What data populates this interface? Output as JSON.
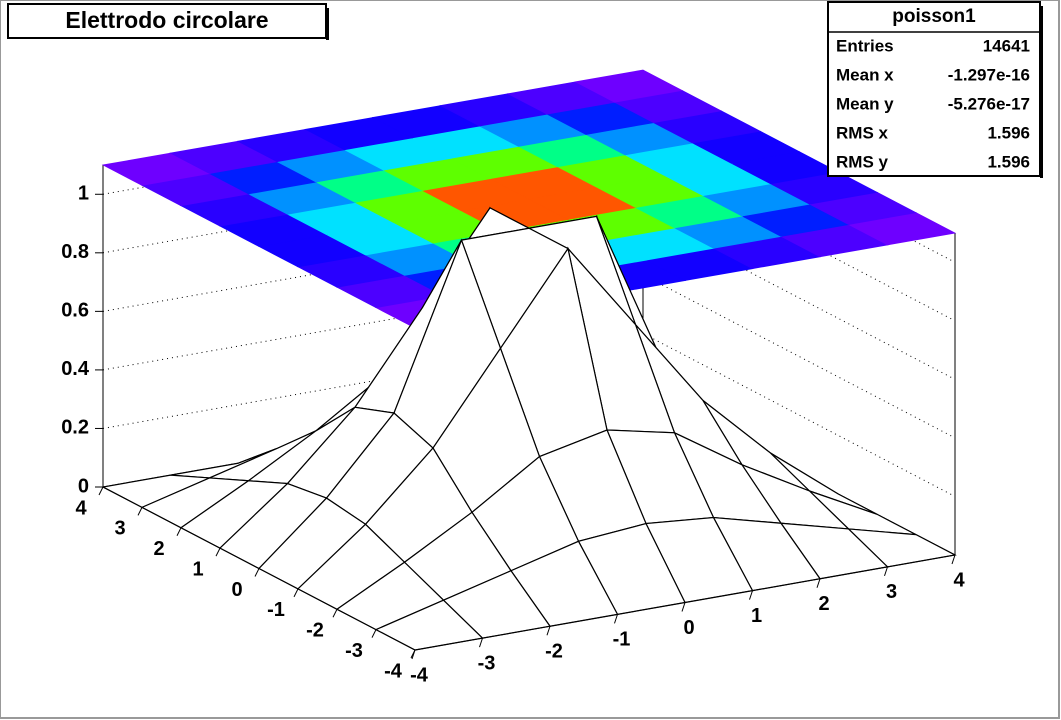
{
  "chart_data": {
    "type": "surface",
    "title": "Elettrodo circolare",
    "stats": {
      "name": "poisson1",
      "rows": [
        {
          "label": "Entries",
          "value": 14641
        },
        {
          "label": "Mean x",
          "value": -1.297e-16
        },
        {
          "label": "Mean y",
          "value": -5.276e-17
        },
        {
          "label": "RMS x",
          "value": 1.596
        },
        {
          "label": "RMS y",
          "value": 1.596
        }
      ]
    },
    "x": [
      -4,
      -3,
      -2,
      -1,
      0,
      1,
      2,
      3,
      4
    ],
    "y": [
      -4,
      -3,
      -2,
      -1,
      0,
      1,
      2,
      3,
      4
    ],
    "z": [
      [
        0,
        0,
        0,
        0,
        0,
        0,
        0,
        0,
        0
      ],
      [
        0,
        0.06,
        0.12,
        0.18,
        0.2,
        0.18,
        0.12,
        0.06,
        0
      ],
      [
        0,
        0.12,
        0.25,
        0.4,
        0.45,
        0.4,
        0.25,
        0.12,
        0
      ],
      [
        0,
        0.18,
        0.4,
        0.7,
        1,
        0.7,
        0.4,
        0.18,
        0
      ],
      [
        0,
        0.2,
        0.45,
        1,
        1,
        1,
        0.45,
        0.2,
        0
      ],
      [
        0,
        0.18,
        0.4,
        0.7,
        1,
        0.7,
        0.4,
        0.18,
        0
      ],
      [
        0,
        0.12,
        0.25,
        0.4,
        0.45,
        0.4,
        0.25,
        0.12,
        0
      ],
      [
        0,
        0.06,
        0.12,
        0.18,
        0.2,
        0.18,
        0.12,
        0.06,
        0
      ],
      [
        0,
        0,
        0,
        0,
        0,
        0,
        0,
        0,
        0
      ]
    ],
    "xlim": [
      -4,
      4
    ],
    "ylim": [
      -4,
      4
    ],
    "zlim": [
      0,
      1.1
    ],
    "xticks": [
      -4,
      -3,
      -2,
      -1,
      0,
      1,
      2,
      3,
      4
    ],
    "yticks": [
      -4,
      -3,
      -2,
      -1,
      0,
      1,
      2,
      3,
      4
    ],
    "zticks": [
      0,
      0.2,
      0.4,
      0.6,
      0.8,
      1
    ],
    "grid": true
  }
}
